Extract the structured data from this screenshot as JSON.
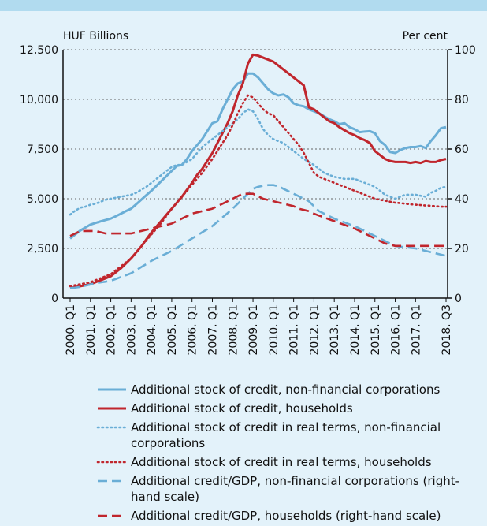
{
  "chart_data": {
    "type": "line",
    "y_label": "HUF Billions",
    "y2_label": "Per cent",
    "categories": [
      "2000. Q1",
      null,
      null,
      null,
      "2001. Q1",
      null,
      null,
      null,
      "2002. Q1",
      null,
      null,
      null,
      "2003. Q1",
      null,
      null,
      null,
      "2004. Q1",
      null,
      null,
      null,
      "2005. Q1",
      null,
      null,
      null,
      "2006. Q1",
      null,
      null,
      null,
      "2007. Q1",
      null,
      null,
      null,
      "2008. Q1",
      null,
      null,
      null,
      "2009. Q1",
      null,
      null,
      null,
      "2010. Q1",
      null,
      null,
      null,
      "2011. Q1",
      null,
      null,
      null,
      "2012. Q1",
      null,
      null,
      null,
      "2013. Q1",
      null,
      null,
      null,
      "2014. Q1",
      null,
      null,
      null,
      "2015. Q1",
      null,
      null,
      null,
      "2016. Q1",
      null,
      null,
      null,
      "2017. Q1",
      null,
      null,
      null,
      null,
      null,
      "2018. Q3"
    ],
    "ylim": [
      0,
      12500
    ],
    "yticks": [
      0,
      {
        "value": 2500,
        "label": "2,500"
      },
      {
        "value": 5000,
        "label": "5,000"
      },
      {
        "value": 7500,
        "label": "7,500"
      },
      {
        "value": 10000,
        "label": "10,000"
      },
      {
        "value": 12500,
        "label": "12,500"
      }
    ],
    "y2lim": [
      0,
      100
    ],
    "y2ticks": [
      0,
      20,
      40,
      60,
      80,
      100
    ],
    "grid": true,
    "series": [
      {
        "name": "Additional stock of credit, non-financial corporations",
        "color": "#6aaed6",
        "style": "solid",
        "values": [
          3000,
          3200,
          3400,
          3550,
          3700,
          3780,
          3860,
          3930,
          4000,
          4120,
          4250,
          4380,
          4500,
          4720,
          4950,
          5180,
          5400,
          5650,
          5900,
          6150,
          6400,
          6650,
          6700,
          7000,
          7400,
          7700,
          8000,
          8400,
          8800,
          8900,
          9500,
          10000,
          10500,
          10800,
          10900,
          11300,
          11300,
          11100,
          10800,
          10500,
          10300,
          10200,
          10250,
          10100,
          9800,
          9700,
          9650,
          9500,
          9400,
          9300,
          9150,
          9000,
          8900,
          8750,
          8800,
          8600,
          8500,
          8350,
          8380,
          8400,
          8300,
          7900,
          7700,
          7350,
          7300,
          7450,
          7550,
          7600,
          7600,
          7650,
          7550,
          7900,
          8200,
          8550,
          8600
        ]
      },
      {
        "name": "Additional stock of credit, households",
        "color": "#c0262d",
        "style": "solid",
        "values": [
          500,
          550,
          600,
          650,
          700,
          800,
          900,
          1000,
          1100,
          1300,
          1500,
          1750,
          2000,
          2300,
          2600,
          2950,
          3300,
          3600,
          3900,
          4200,
          4500,
          4800,
          5100,
          5450,
          5800,
          6200,
          6500,
          6900,
          7300,
          7800,
          8300,
          8800,
          9400,
          10200,
          10800,
          11800,
          12250,
          12200,
          12100,
          12000,
          11900,
          11700,
          11500,
          11300,
          11100,
          10900,
          10700,
          9600,
          9500,
          9300,
          9100,
          8900,
          8800,
          8600,
          8450,
          8300,
          8200,
          8050,
          7950,
          7800,
          7400,
          7200,
          7000,
          6900,
          6850,
          6850,
          6850,
          6800,
          6850,
          6800,
          6900,
          6850,
          6850,
          6950,
          7000
        ]
      },
      {
        "name": "Additional stock of credit in real terms, non-financial corporations",
        "color": "#6aaed6",
        "style": "dotted",
        "values": [
          4200,
          4400,
          4550,
          4600,
          4700,
          4750,
          4850,
          4950,
          5000,
          5050,
          5100,
          5150,
          5200,
          5300,
          5450,
          5600,
          5800,
          6000,
          6200,
          6400,
          6600,
          6700,
          6700,
          6850,
          7000,
          7300,
          7600,
          7800,
          8000,
          8200,
          8400,
          8600,
          8800,
          9000,
          9300,
          9500,
          9400,
          9000,
          8500,
          8200,
          8000,
          7900,
          7800,
          7600,
          7400,
          7200,
          7000,
          6850,
          6700,
          6500,
          6300,
          6200,
          6100,
          6050,
          6000,
          6000,
          6000,
          5900,
          5800,
          5700,
          5600,
          5400,
          5200,
          5100,
          5000,
          5100,
          5200,
          5200,
          5200,
          5150,
          5100,
          5300,
          5400,
          5550,
          5600
        ]
      },
      {
        "name": "Additional stock of credit in real terms, households",
        "color": "#c0262d",
        "style": "dotted",
        "values": [
          600,
          650,
          700,
          750,
          800,
          900,
          1000,
          1100,
          1200,
          1400,
          1600,
          1800,
          2000,
          2300,
          2600,
          2900,
          3200,
          3500,
          3800,
          4150,
          4500,
          4800,
          5100,
          5400,
          5700,
          6000,
          6300,
          6650,
          7000,
          7400,
          7800,
          8200,
          8700,
          9300,
          9800,
          10200,
          10100,
          9800,
          9500,
          9300,
          9200,
          8900,
          8600,
          8300,
          8000,
          7700,
          7300,
          6800,
          6300,
          6100,
          6000,
          5900,
          5800,
          5700,
          5600,
          5500,
          5400,
          5300,
          5200,
          5100,
          5000,
          4950,
          4900,
          4850,
          4800,
          4780,
          4750,
          4720,
          4700,
          4680,
          4660,
          4650,
          4620,
          4600,
          4600
        ]
      },
      {
        "name": "Additional credit/GDP, non-financial corporations (right-hand scale)",
        "color": "#6aaed6",
        "style": "dashed",
        "axis": "y2",
        "values": [
          4,
          4.2,
          4.5,
          5,
          5.5,
          6,
          6.3,
          6.6,
          7,
          7.7,
          8.5,
          9.2,
          10,
          11.2,
          12.5,
          13.7,
          15,
          16,
          17,
          18,
          19,
          20.2,
          21.5,
          22.7,
          24,
          25.2,
          26.5,
          27.7,
          29,
          30.7,
          32.5,
          34.2,
          36,
          38,
          40,
          42,
          44,
          44.8,
          45.2,
          45.5,
          45.5,
          45,
          44,
          43,
          42,
          41,
          40,
          39,
          37,
          35,
          34,
          33,
          32,
          31.2,
          30.5,
          29.7,
          29,
          28,
          27,
          26,
          25,
          24,
          23,
          22,
          21,
          20.7,
          20.5,
          20.2,
          20,
          19.5,
          19,
          18.5,
          18,
          17.5,
          17
        ]
      },
      {
        "name": "Additional credit/GDP, households (right-hand scale)",
        "color": "#c0262d",
        "style": "dashed",
        "axis": "y2",
        "values": [
          25,
          26,
          27,
          27,
          27,
          27,
          26.5,
          26,
          26,
          26,
          26,
          26,
          26,
          26.5,
          27,
          27.5,
          28,
          28.5,
          29,
          29.5,
          30,
          31,
          32,
          33,
          34,
          34.5,
          35,
          35.5,
          36,
          37,
          38,
          39,
          40,
          41,
          42,
          42,
          42,
          41,
          40,
          39.5,
          39,
          38.5,
          38,
          37.5,
          37,
          36,
          35.5,
          35,
          34,
          33.2,
          32.5,
          31.7,
          31,
          30.2,
          29.5,
          28.7,
          28,
          27,
          26,
          25,
          24,
          23,
          22,
          21.5,
          21,
          21,
          21,
          21,
          21,
          21,
          21,
          21,
          21,
          21,
          21
        ]
      }
    ]
  }
}
